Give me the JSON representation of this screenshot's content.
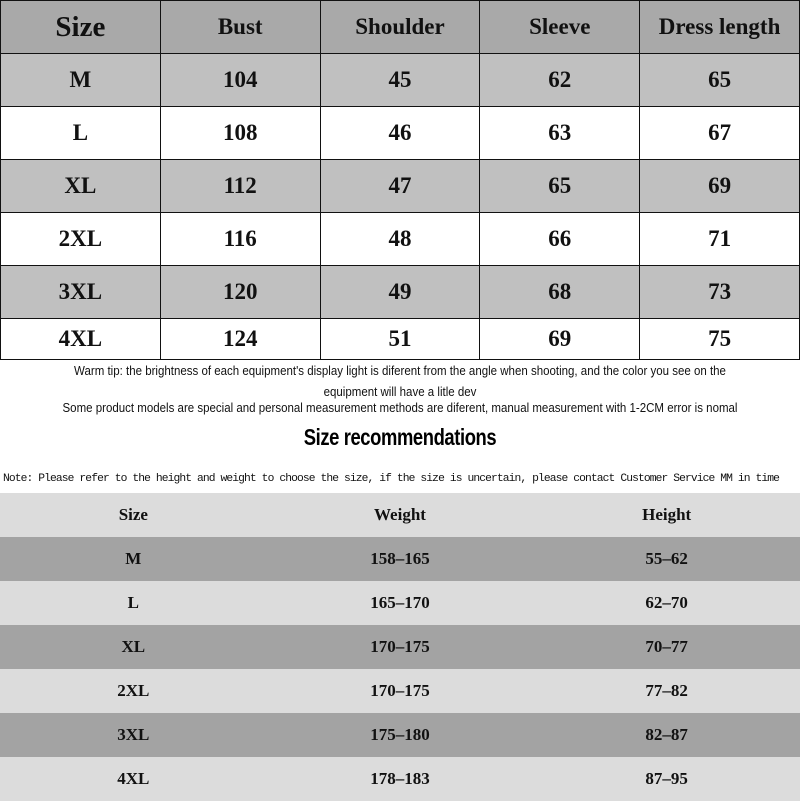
{
  "size_chart": {
    "headers": [
      "Size",
      "Bust",
      "Shoulder",
      "Sleeve",
      "Dress length"
    ],
    "rows": [
      [
        "M",
        "104",
        "45",
        "62",
        "65"
      ],
      [
        "L",
        "108",
        "46",
        "63",
        "67"
      ],
      [
        "XL",
        "112",
        "47",
        "65",
        "69"
      ],
      [
        "2XL",
        "116",
        "48",
        "66",
        "71"
      ],
      [
        "3XL",
        "120",
        "49",
        "68",
        "73"
      ],
      [
        "4XL",
        "124",
        "51",
        "69",
        "75"
      ]
    ]
  },
  "tips": {
    "line1": "Warm tip: the brightness of each equipment's display light is diferent from the angle when shooting, and the color you see on the",
    "line2": "equipment will have a litle dev",
    "line3": "Some product models are special and personal measurement methods are diferent, manual measurement with 1-2CM error is nomal"
  },
  "recommendations": {
    "title": "Size recommendations",
    "note": "Note: Please refer to the height and weight to choose the size, if the size is uncertain, please contact Customer Service MM in time",
    "headers": [
      "Size",
      "Weight",
      "Height"
    ],
    "rows": [
      [
        "M",
        "158–165",
        "55–62"
      ],
      [
        "L",
        "165–170",
        "62–70"
      ],
      [
        "XL",
        "170–175",
        "70–77"
      ],
      [
        "2XL",
        "170–175",
        "77–82"
      ],
      [
        "3XL",
        "175–180",
        "82–87"
      ],
      [
        "4XL",
        "178–183",
        "87–95"
      ]
    ]
  }
}
